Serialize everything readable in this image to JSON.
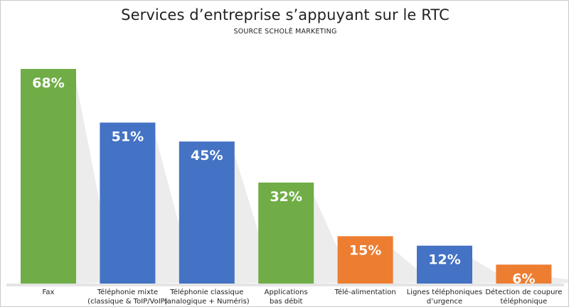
{
  "chart_data": {
    "type": "bar",
    "title": "Services d’entreprise s’appuyant sur le RTC",
    "subtitle": "SOURCE SCHOLÈ MARKETING",
    "categories": [
      [
        "Fax"
      ],
      [
        "Téléphonie mixte",
        "(classique & ToIP/VoIP)"
      ],
      [
        "Téléphonie classique",
        "(analogique + Numéris)"
      ],
      [
        "Applications",
        "bas débit"
      ],
      [
        "Télé-alimentation"
      ],
      [
        "Lignes téléphoniques",
        "d’urgence"
      ],
      [
        "Détection de coupure",
        "téléphonique"
      ]
    ],
    "values": [
      68,
      51,
      45,
      32,
      15,
      12,
      6
    ],
    "data_labels": [
      "68%",
      "51%",
      "45%",
      "32%",
      "15%",
      "12%",
      "6%"
    ],
    "colors": [
      "#70ad47",
      "#4472c4",
      "#4472c4",
      "#70ad47",
      "#ed7d31",
      "#4472c4",
      "#ed7d31"
    ],
    "ylim": [
      0,
      70
    ],
    "grid": false,
    "legend": "none"
  }
}
